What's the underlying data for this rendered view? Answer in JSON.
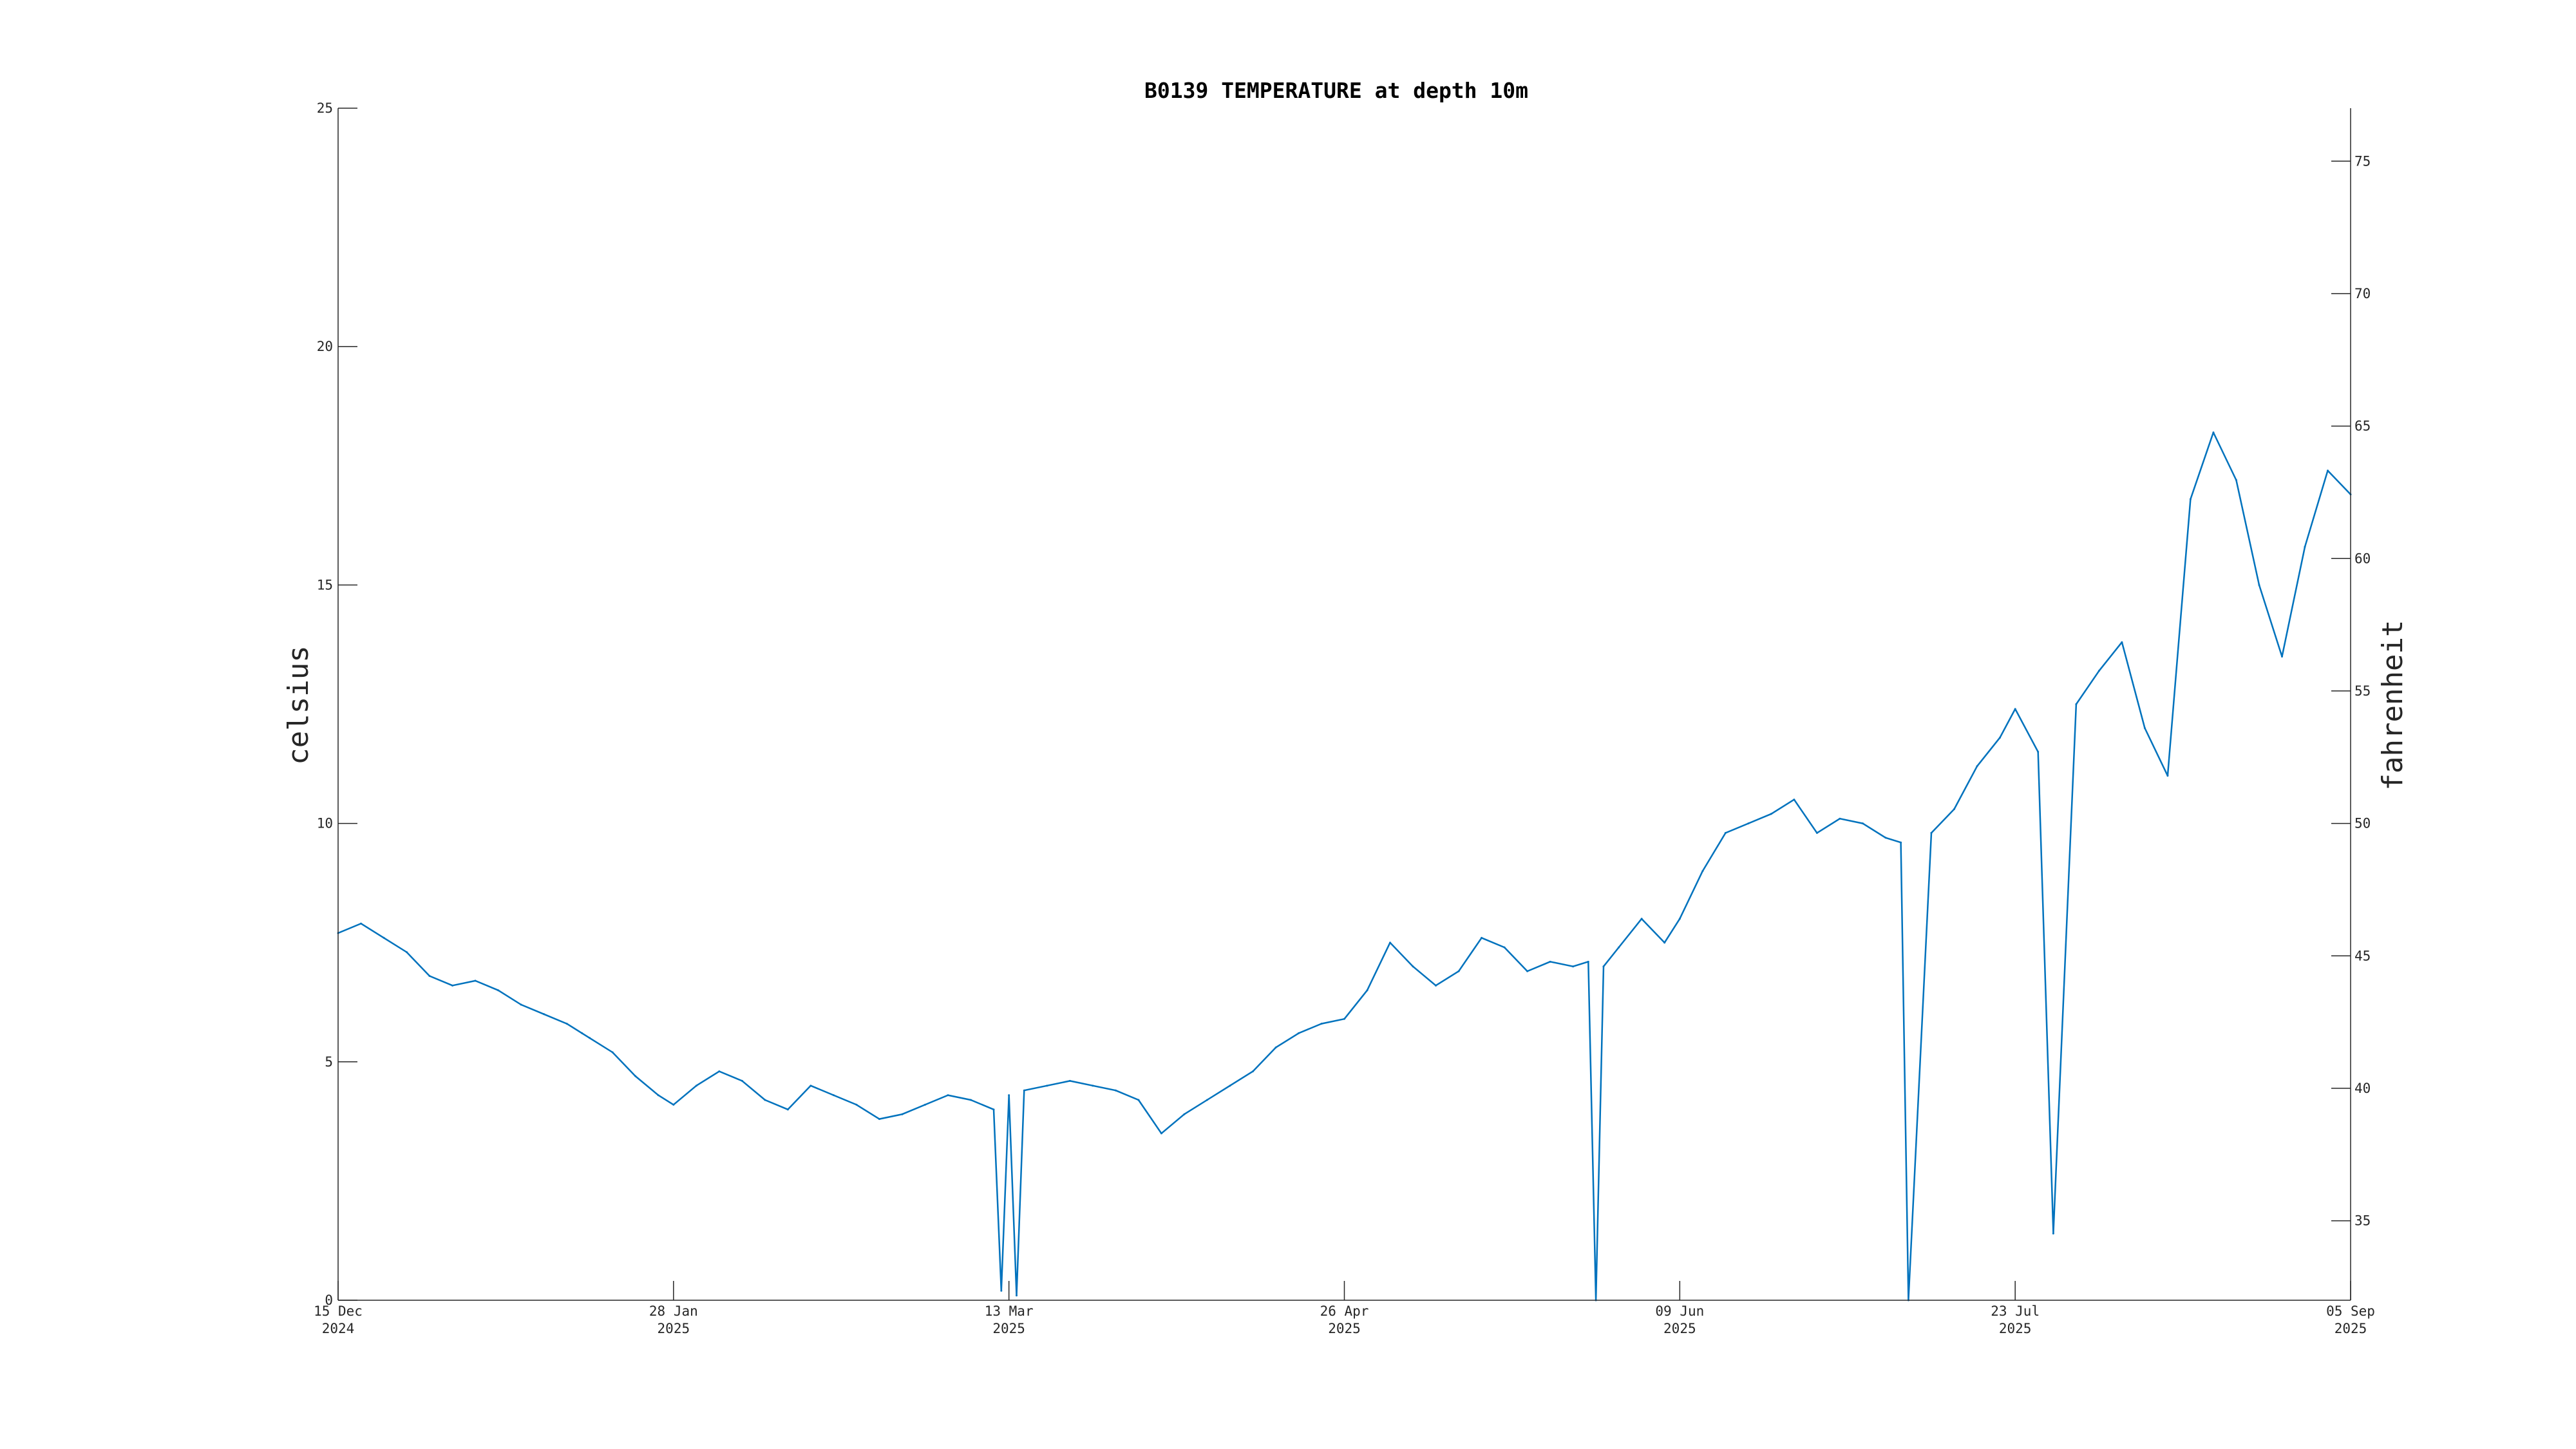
{
  "chart_data": {
    "type": "line",
    "title": "B0139 TEMPERATURE at depth 10m",
    "ylabel_left": "celsius",
    "ylabel_right": "fahrenheit",
    "xlabel": "",
    "grid": false,
    "legend": "none",
    "colors": {
      "line": "#0072bd",
      "axis": "#262626"
    },
    "xlim": [
      "2024-12-15",
      "2025-09-05"
    ],
    "ylim": [
      0,
      25
    ],
    "ylim_right": [
      32,
      77
    ],
    "x_ticks": [
      {
        "date": "2024-12-15",
        "day": "15 Dec",
        "year": "2024"
      },
      {
        "date": "2025-01-28",
        "day": "28 Jan",
        "year": "2025"
      },
      {
        "date": "2025-03-13",
        "day": "13 Mar",
        "year": "2025"
      },
      {
        "date": "2025-04-26",
        "day": "26 Apr",
        "year": "2025"
      },
      {
        "date": "2025-06-09",
        "day": "09 Jun",
        "year": "2025"
      },
      {
        "date": "2025-07-23",
        "day": "23 Jul",
        "year": "2025"
      },
      {
        "date": "2025-09-05",
        "day": "05 Sep",
        "year": "2025"
      }
    ],
    "y_ticks_left": [
      "0",
      "5",
      "10",
      "15",
      "20",
      "25"
    ],
    "y_ticks_right": [
      "35",
      "40",
      "45",
      "50",
      "55",
      "60",
      "65",
      "70",
      "75"
    ],
    "series": [
      {
        "x": [
          "2024-12-15",
          "2024-12-18",
          "2024-12-21",
          "2024-12-24",
          "2024-12-27",
          "2024-12-30",
          "2025-01-02",
          "2025-01-05",
          "2025-01-08",
          "2025-01-11",
          "2025-01-14",
          "2025-01-16",
          "2025-01-17",
          "2025-01-20",
          "2025-01-23",
          "2025-01-26",
          "2025-01-28",
          "2025-01-31",
          "2025-02-03",
          "2025-02-06",
          "2025-02-09",
          "2025-02-12",
          "2025-02-15",
          "2025-02-18",
          "2025-02-21",
          "2025-02-24",
          "2025-02-27",
          "2025-03-02",
          "2025-03-05",
          "2025-03-08",
          "2025-03-11",
          "2025-03-12",
          "2025-03-13",
          "2025-03-14",
          "2025-03-15",
          "2025-03-18",
          "2025-03-21",
          "2025-03-24",
          "2025-03-27",
          "2025-03-30",
          "2025-04-02",
          "2025-04-05",
          "2025-04-08",
          "2025-04-11",
          "2025-04-14",
          "2025-04-17",
          "2025-04-20",
          "2025-04-23",
          "2025-04-26",
          "2025-04-29",
          "2025-05-02",
          "2025-05-05",
          "2025-05-08",
          "2025-05-11",
          "2025-05-14",
          "2025-05-17",
          "2025-05-20",
          "2025-05-23",
          "2025-05-26",
          "2025-05-28",
          "2025-05-29",
          "2025-05-30",
          "2025-06-01",
          "2025-06-04",
          "2025-06-07",
          "2025-06-09",
          "2025-06-12",
          "2025-06-15",
          "2025-06-18",
          "2025-06-21",
          "2025-06-24",
          "2025-06-27",
          "2025-06-30",
          "2025-07-03",
          "2025-07-06",
          "2025-07-08",
          "2025-07-09",
          "2025-07-12",
          "2025-07-15",
          "2025-07-18",
          "2025-07-21",
          "2025-07-23",
          "2025-07-26",
          "2025-07-28",
          "2025-07-31",
          "2025-08-03",
          "2025-08-06",
          "2025-08-09",
          "2025-08-12",
          "2025-08-15",
          "2025-08-18",
          "2025-08-21",
          "2025-08-24",
          "2025-08-27",
          "2025-08-30",
          "2025-09-02",
          "2025-09-05"
        ],
        "values": [
          7.7,
          7.9,
          7.6,
          7.3,
          6.8,
          6.6,
          6.7,
          6.5,
          6.2,
          6.0,
          5.8,
          5.6,
          5.5,
          5.2,
          4.7,
          4.3,
          4.1,
          4.5,
          4.8,
          4.6,
          4.2,
          4.0,
          4.5,
          4.3,
          4.1,
          3.8,
          3.9,
          4.1,
          4.3,
          4.2,
          4.0,
          0.2,
          4.3,
          0.1,
          4.4,
          4.5,
          4.6,
          4.5,
          4.4,
          4.2,
          3.5,
          3.9,
          4.2,
          4.5,
          4.8,
          5.3,
          5.6,
          5.8,
          5.9,
          6.5,
          7.5,
          7.0,
          6.6,
          6.9,
          7.6,
          7.4,
          6.9,
          7.1,
          7.0,
          7.1,
          0.0,
          7.0,
          7.4,
          8.0,
          7.5,
          8.0,
          9.0,
          9.8,
          10.0,
          10.2,
          10.5,
          9.8,
          10.1,
          10.0,
          9.7,
          9.6,
          0.0,
          9.8,
          10.3,
          11.2,
          11.8,
          12.4,
          11.5,
          1.4,
          12.5,
          13.2,
          13.8,
          12.0,
          11.0,
          16.8,
          18.2,
          17.2,
          15.0,
          13.5,
          15.8,
          17.4,
          16.9
        ]
      }
    ]
  }
}
